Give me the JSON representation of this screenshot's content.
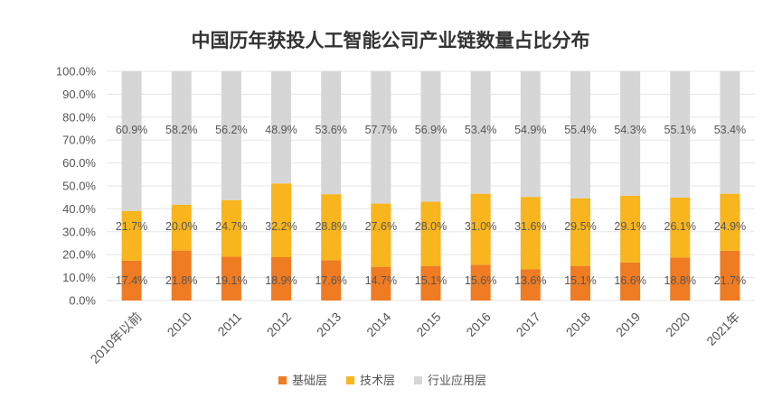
{
  "chart_data": {
    "type": "stacked-bar",
    "title": "中国历年获投人工智能公司产业链数量占比分布",
    "categories": [
      "2010年以前",
      "2010",
      "2011",
      "2012",
      "2013",
      "2014",
      "2015",
      "2016",
      "2017",
      "2018",
      "2019",
      "2020",
      "2021年"
    ],
    "ylim": [
      0,
      100
    ],
    "y_ticks": [
      "0.0%",
      "10.0%",
      "20.0%",
      "30.0%",
      "40.0%",
      "50.0%",
      "60.0%",
      "70.0%",
      "80.0%",
      "90.0%",
      "100.0%"
    ],
    "legend_position": "bottom-center",
    "series": [
      {
        "name": "基础层",
        "color": "#ef7b22",
        "values": [
          17.4,
          21.8,
          19.1,
          18.9,
          17.6,
          14.7,
          15.1,
          15.6,
          13.6,
          15.1,
          16.6,
          18.8,
          21.7
        ],
        "labels": [
          "17.4%",
          "21.8%",
          "19.1%",
          "18.9%",
          "17.6%",
          "14.7%",
          "15.1%",
          "15.6%",
          "13.6%",
          "15.1%",
          "16.6%",
          "18.8%",
          "21.7%"
        ]
      },
      {
        "name": "技术层",
        "color": "#f8b51d",
        "values": [
          21.7,
          20.0,
          24.7,
          32.2,
          28.8,
          27.6,
          28.0,
          31.0,
          31.6,
          29.5,
          29.1,
          26.1,
          24.9
        ],
        "labels": [
          "21.7%",
          "20.0%",
          "24.7%",
          "32.2%",
          "28.8%",
          "27.6%",
          "28.0%",
          "31.0%",
          "31.6%",
          "29.5%",
          "29.1%",
          "26.1%",
          "24.9%"
        ]
      },
      {
        "name": "行业应用层",
        "color": "#d6d6d6",
        "values": [
          60.9,
          58.2,
          56.2,
          48.9,
          53.6,
          57.7,
          56.9,
          53.4,
          54.9,
          55.4,
          54.3,
          55.1,
          53.4
        ],
        "labels": [
          "60.9%",
          "58.2%",
          "56.2%",
          "48.9%",
          "53.6%",
          "57.7%",
          "56.9%",
          "53.4%",
          "54.9%",
          "55.4%",
          "54.3%",
          "55.1%",
          "53.4%"
        ]
      }
    ]
  }
}
